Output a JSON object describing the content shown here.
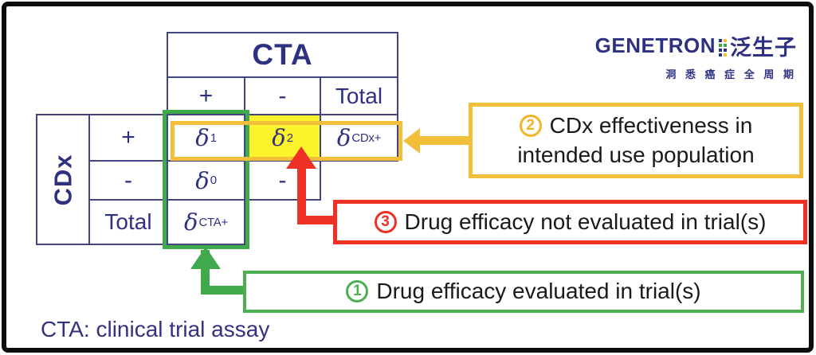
{
  "table": {
    "col_group_header": "CTA",
    "row_group_header": "CDx",
    "col_labels": [
      "+",
      "-",
      "Total"
    ],
    "row_labels": [
      "+",
      "-",
      "Total"
    ],
    "cells": {
      "delta1": {
        "base": "δ",
        "sub": "1"
      },
      "delta2": {
        "base": "δ",
        "sub": "2"
      },
      "delta_cdx_pos": {
        "base": "δ",
        "sub": "CDx+"
      },
      "delta0": {
        "base": "δ",
        "sub": "0"
      },
      "dash": "-",
      "delta_cta_pos": {
        "base": "δ",
        "sub": "CTA+"
      }
    }
  },
  "callouts": {
    "one": {
      "number": "1",
      "label": "Drug efficacy evaluated in trial(s)",
      "color": "#4caf50"
    },
    "two": {
      "number": "2",
      "line1": "CDx effectiveness in",
      "line2": "intended use population",
      "color": "#f2bf3a"
    },
    "three": {
      "number": "3",
      "label": "Drug efficacy not evaluated in trial(s)",
      "color": "#ee3124"
    }
  },
  "footnote": "CTA: clinical trial assay",
  "logo": {
    "brand": "GENETRON",
    "brand_cn": "泛生子",
    "tagline": "洞 悉 癌 症 全 周 期"
  },
  "colors": {
    "navy": "#2e3181",
    "green": "#3fa94c",
    "gold": "#f2bf3a",
    "red": "#ee3124",
    "highlight_yellow": "#fdf32b"
  }
}
